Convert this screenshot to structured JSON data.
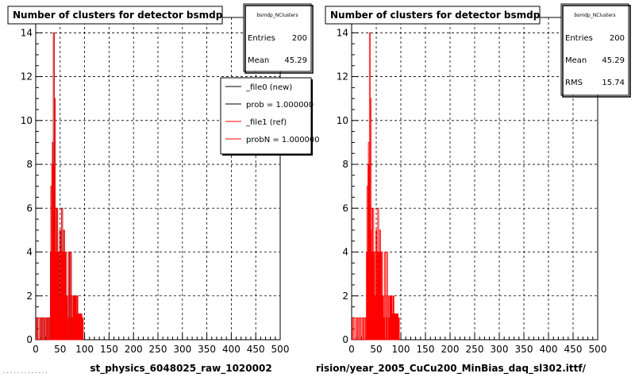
{
  "chart_data": [
    {
      "type": "histogram",
      "title": "Number of clusters for detector bsmdp",
      "xlabel": "st_physics_6048025_raw_1020002",
      "xlim": [
        0,
        500
      ],
      "ylim": [
        0,
        14.7
      ],
      "x_ticks": [
        "0",
        "50",
        "100",
        "150",
        "200",
        "250",
        "300",
        "350",
        "400",
        "450",
        "500"
      ],
      "y_ticks": [
        "0",
        "2",
        "4",
        "6",
        "8",
        "10",
        "12",
        "14"
      ],
      "grid": true,
      "stats": {
        "name": "bsmdp_NClusters",
        "entries_label": "Entries",
        "entries": "200",
        "mean_label": "Mean",
        "mean": "45.29"
      },
      "legend": {
        "placement": "top-right",
        "entries": [
          {
            "label": "_file0 (new)",
            "color": "#000000"
          },
          {
            "label": "prob = 1.000000",
            "color": "#000000"
          },
          {
            "label": "_file1 (ref)",
            "color": "#ff0000"
          },
          {
            "label": "probN = 1.000000",
            "color": "#ff0000"
          }
        ]
      },
      "series": [
        {
          "name": "_file0 (new)",
          "color": "#000000",
          "x": [
            1,
            3,
            8,
            10,
            14,
            17,
            21,
            24,
            26,
            28,
            30,
            31,
            33,
            34,
            35,
            36,
            37,
            38,
            39,
            40,
            41,
            42,
            43,
            44,
            45,
            46,
            47,
            48,
            49,
            50,
            51,
            52,
            53,
            54,
            55,
            56,
            57,
            58,
            59,
            60,
            61,
            62,
            63,
            64,
            65,
            67,
            69,
            70,
            71,
            73,
            75,
            77,
            79,
            80,
            81,
            82,
            84,
            85,
            87,
            89,
            91,
            95
          ],
          "values": [
            1,
            1,
            1,
            1,
            1,
            1,
            1,
            1,
            1,
            1,
            4,
            7,
            8,
            9,
            8,
            14,
            5,
            11,
            4,
            6,
            4,
            4,
            6,
            4,
            4,
            1,
            4,
            2,
            5,
            2,
            4,
            4,
            6,
            2,
            4,
            4,
            5,
            4,
            4,
            1,
            4,
            2,
            2,
            1,
            1,
            4,
            2,
            1,
            4,
            2,
            1,
            2,
            2,
            2,
            1,
            1,
            2,
            1,
            1,
            1,
            1,
            1
          ]
        },
        {
          "name": "_file1 (ref)",
          "color": "#ff0000",
          "x": [
            1,
            3,
            8,
            10,
            14,
            17,
            21,
            24,
            26,
            28,
            30,
            31,
            33,
            34,
            35,
            36,
            37,
            38,
            39,
            40,
            41,
            42,
            43,
            44,
            45,
            46,
            47,
            48,
            49,
            50,
            51,
            52,
            53,
            54,
            55,
            56,
            57,
            58,
            59,
            60,
            61,
            62,
            63,
            64,
            65,
            67,
            69,
            70,
            71,
            73,
            75,
            77,
            79,
            80,
            81,
            82,
            84,
            85,
            87,
            89,
            91,
            95
          ],
          "values": [
            1,
            1,
            1,
            1,
            1,
            1,
            1,
            1,
            1,
            1,
            4,
            7,
            8,
            9,
            8,
            14,
            5,
            11,
            4,
            6,
            4,
            4,
            6,
            4,
            4,
            1,
            4,
            2,
            5,
            2,
            4,
            4,
            6,
            2,
            4,
            4,
            5,
            4,
            4,
            1,
            4,
            2,
            2,
            1,
            1,
            4,
            2,
            1,
            4,
            2,
            1,
            2,
            2,
            2,
            1,
            1,
            2,
            1,
            1,
            1,
            1,
            1
          ]
        }
      ]
    },
    {
      "type": "histogram",
      "title": "Number of clusters for detector bsmdp",
      "xlabel": "rision/year_2005_CuCu200_MinBias_daq_sl302.ittf/",
      "xlim": [
        0,
        500
      ],
      "ylim": [
        0,
        14.7
      ],
      "x_ticks": [
        "0",
        "50",
        "100",
        "150",
        "200",
        "250",
        "300",
        "350",
        "400",
        "450",
        "500"
      ],
      "y_ticks": [
        "0",
        "2",
        "4",
        "6",
        "8",
        "10",
        "12",
        "14"
      ],
      "grid": true,
      "stats": {
        "name": "bsmdp_NClusters",
        "entries_label": "Entries",
        "entries": "200",
        "mean_label": "Mean",
        "mean": "45.29",
        "rms_label": "RMS",
        "rms": "15.74"
      },
      "series": [
        {
          "name": "_file1 (ref)",
          "color": "#ff0000",
          "x": [
            1,
            3,
            8,
            10,
            14,
            17,
            21,
            24,
            26,
            28,
            30,
            31,
            33,
            34,
            35,
            36,
            37,
            38,
            39,
            40,
            41,
            42,
            43,
            44,
            45,
            46,
            47,
            48,
            49,
            50,
            51,
            52,
            53,
            54,
            55,
            56,
            57,
            58,
            59,
            60,
            61,
            62,
            63,
            64,
            65,
            67,
            69,
            70,
            71,
            73,
            75,
            77,
            79,
            80,
            81,
            82,
            84,
            85,
            87,
            89,
            91,
            95
          ],
          "values": [
            1,
            1,
            1,
            1,
            1,
            1,
            1,
            1,
            1,
            1,
            4,
            7,
            8,
            9,
            8,
            14,
            5,
            11,
            4,
            6,
            4,
            4,
            6,
            4,
            4,
            1,
            4,
            2,
            5,
            2,
            4,
            4,
            6,
            2,
            4,
            4,
            5,
            4,
            4,
            1,
            4,
            2,
            2,
            1,
            1,
            4,
            2,
            1,
            4,
            2,
            1,
            2,
            2,
            2,
            1,
            1,
            2,
            1,
            1,
            1,
            1,
            1
          ]
        }
      ]
    }
  ],
  "footer": "· · · · · · · · · · · · ·"
}
